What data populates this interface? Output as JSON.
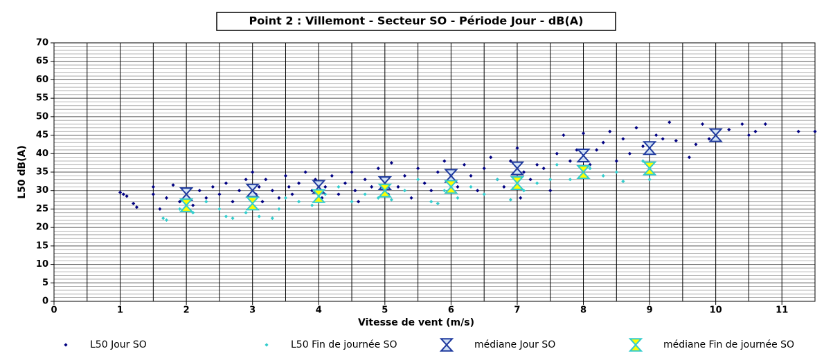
{
  "chart_data": {
    "type": "scatter",
    "title": "Point 2 : Villemont  - Secteur SO - Période Jour - dB(A)",
    "x_label": "Vitesse de vent (m/s)",
    "y_label": "L50 dB(A)",
    "xlim": [
      0,
      11.5
    ],
    "ylim": [
      0,
      70
    ],
    "xticks": [
      0,
      1,
      2,
      3,
      4,
      5,
      6,
      7,
      8,
      9,
      10,
      11
    ],
    "yticks": [
      0,
      5,
      10,
      15,
      20,
      25,
      30,
      35,
      40,
      45,
      50,
      55,
      60,
      65,
      70
    ],
    "grid": true,
    "series": [
      {
        "name": "L50 Jour SO",
        "color": "#000080",
        "marker": "diamond",
        "x": [
          1.0,
          1.05,
          1.1,
          1.2,
          1.25,
          1.5,
          1.5,
          1.6,
          1.7,
          1.8,
          1.9,
          2.1,
          2.2,
          2.3,
          2.4,
          2.5,
          2.6,
          2.7,
          2.8,
          2.9,
          3.0,
          3.05,
          3.1,
          3.15,
          3.2,
          3.3,
          3.4,
          3.5,
          3.55,
          3.6,
          3.7,
          3.8,
          3.9,
          3.95,
          4.05,
          4.1,
          4.2,
          4.3,
          4.4,
          4.5,
          4.55,
          4.6,
          4.7,
          4.8,
          4.9,
          5.0,
          5.05,
          5.1,
          5.2,
          5.3,
          5.4,
          5.5,
          5.6,
          5.7,
          5.8,
          5.9,
          6.0,
          6.1,
          6.2,
          6.3,
          6.4,
          6.5,
          6.6,
          6.7,
          6.8,
          6.9,
          7.0,
          7.05,
          7.1,
          7.2,
          7.3,
          7.4,
          7.5,
          7.6,
          7.7,
          7.8,
          7.9,
          8.0,
          8.1,
          8.2,
          8.3,
          8.4,
          8.5,
          8.6,
          8.7,
          8.8,
          8.9,
          9.1,
          9.2,
          9.3,
          9.4,
          9.6,
          9.7,
          9.8,
          9.9,
          10.2,
          10.4,
          10.5,
          10.6,
          10.75,
          11.25,
          11.5
        ],
        "values": [
          29.5,
          29,
          28.5,
          26.5,
          25.5,
          31,
          29,
          25,
          28,
          31.5,
          27,
          26,
          30,
          28,
          31,
          29,
          32,
          27,
          30,
          33,
          35,
          29,
          31,
          27,
          33,
          30,
          28,
          34,
          31,
          29,
          32,
          35,
          30,
          33,
          28,
          31,
          34,
          29,
          32,
          35,
          30,
          27,
          33,
          31,
          36,
          33,
          29,
          37.5,
          31,
          34,
          28,
          36,
          32,
          30,
          35,
          38,
          33,
          31,
          37,
          34,
          30,
          36,
          39,
          33,
          31,
          38,
          41.5,
          28,
          35,
          33,
          37,
          36,
          30,
          40,
          45,
          38,
          41,
          45.5,
          37,
          41,
          43,
          46,
          38,
          44,
          40,
          47,
          42,
          45,
          44,
          48.5,
          43.5,
          39,
          42.5,
          48,
          44,
          46.5,
          48,
          45,
          46,
          48,
          46,
          46
        ]
      },
      {
        "name": "L50 Fin de journée SO",
        "color": "#33cccc",
        "marker": "diamond",
        "x": [
          1.65,
          1.7,
          1.9,
          2.1,
          2.3,
          2.5,
          2.6,
          2.7,
          2.9,
          3.1,
          3.3,
          3.4,
          3.5,
          3.7,
          3.9,
          4.1,
          4.3,
          4.5,
          4.7,
          4.9,
          5.1,
          5.3,
          5.5,
          5.7,
          5.8,
          5.9,
          6.1,
          6.3,
          6.5,
          6.7,
          6.9,
          7.1,
          7.3,
          7.5,
          7.6,
          7.8,
          8.1,
          8.3,
          8.5,
          8.6,
          8.9,
          9.0
        ],
        "values": [
          22.5,
          22,
          25,
          24,
          27,
          25,
          23,
          22.5,
          24,
          23,
          22.5,
          25,
          28,
          27,
          26,
          29,
          31,
          27,
          29,
          28,
          27.5,
          30,
          33,
          27,
          26.5,
          30,
          28,
          31,
          29,
          33,
          27.5,
          30,
          32,
          33,
          37,
          33,
          36,
          34,
          35,
          32.5,
          38,
          33
        ]
      },
      {
        "name": "médiane Jour SO",
        "color": "#1f3a9e",
        "fill": "#cfe0f5",
        "marker": "hourglass",
        "x": [
          2,
          3,
          4,
          5,
          6,
          7,
          8,
          9,
          10
        ],
        "values": [
          29,
          30,
          31,
          32,
          34,
          36,
          39.5,
          41.5,
          45
        ]
      },
      {
        "name": "médiane Fin de journée SO",
        "color": "#33cccc",
        "fill": "#ffff00",
        "marker": "hourglass",
        "x": [
          2,
          3,
          4,
          5,
          6,
          7,
          8,
          9
        ],
        "values": [
          26,
          26.5,
          28.5,
          30,
          31,
          32,
          35,
          36
        ]
      }
    ]
  }
}
